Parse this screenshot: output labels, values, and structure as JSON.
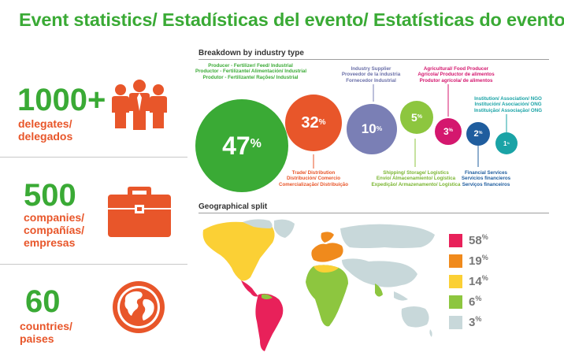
{
  "title": "Event statistics/ Estadísticas del evento/ Estatísticas do evento:",
  "stats": [
    {
      "number": "1000+",
      "label": [
        "delegates/",
        "delegados"
      ],
      "icon": "people-icon"
    },
    {
      "number": "500",
      "label": [
        "companies/",
        "compañías/",
        "empresas"
      ],
      "icon": "briefcase-icon"
    },
    {
      "number": "60",
      "label": [
        "countries/",
        "paises"
      ],
      "icon": "globe-icon"
    }
  ],
  "breakdown_title": "Breakdown by industry type",
  "geo_title": "Geographical split",
  "bubbles": [
    {
      "value": "47",
      "unit": "%",
      "color": "#3aaa35",
      "caption": [
        "Producer - Fertilizer/ Feed/ Industrial",
        "Productor - Fertilizante/ Alimentación/ Industrial",
        "Produtor - Fertilizante/ Rações/ Industrial"
      ],
      "caption_color": "#3aaa35"
    },
    {
      "value": "32",
      "unit": "%",
      "color": "#e8562a",
      "caption": [
        "Trade/ Distribution",
        "Distribución/ Comercio",
        "Comercialização/ Distribuição"
      ],
      "caption_color": "#e8562a"
    },
    {
      "value": "10",
      "unit": "%",
      "color": "#7a7fb5",
      "caption": [
        "Industry Supplier",
        "Proveedor de la industria",
        "Fornecedor Industrial"
      ],
      "caption_color": "#6a6fa8"
    },
    {
      "value": "5",
      "unit": "%",
      "color": "#8dc63f",
      "caption": [
        "Shipping/ Storage/ Logistics",
        "Envío/ Almacenamiento/ Logística",
        "Expedição/ Armazenamento/ Logística"
      ],
      "caption_color": "#7ab531"
    },
    {
      "value": "3",
      "unit": "%",
      "color": "#d4176e",
      "caption": [
        "Agricultural/ Food Producer",
        "Agrícola/ Productor de alimentos",
        "Produtor agrícola/ de alimentos"
      ],
      "caption_color": "#d4176e"
    },
    {
      "value": "2",
      "unit": "%",
      "color": "#1f5d9e",
      "caption": [
        "Financial Services",
        "Servicios financieros",
        "Serviços financeiros"
      ],
      "caption_color": "#1f5d9e"
    },
    {
      "value": "1",
      "unit": "%",
      "color": "#1aa3a6",
      "caption": [
        "Institution/ Association/ NGO",
        "Institución/ Asociación/ ONG",
        "Instituição/ Associação/ ONG"
      ],
      "caption_color": "#1aa3a6"
    }
  ],
  "legend": [
    {
      "value": "58",
      "unit": "%",
      "color": "#e8215a"
    },
    {
      "value": "19",
      "unit": "%",
      "color": "#f08a1c"
    },
    {
      "value": "14",
      "unit": "%",
      "color": "#fbd035"
    },
    {
      "value": "6",
      "unit": "%",
      "color": "#8dc63f"
    },
    {
      "value": "3",
      "unit": "%",
      "color": "#c8d8da"
    }
  ]
}
